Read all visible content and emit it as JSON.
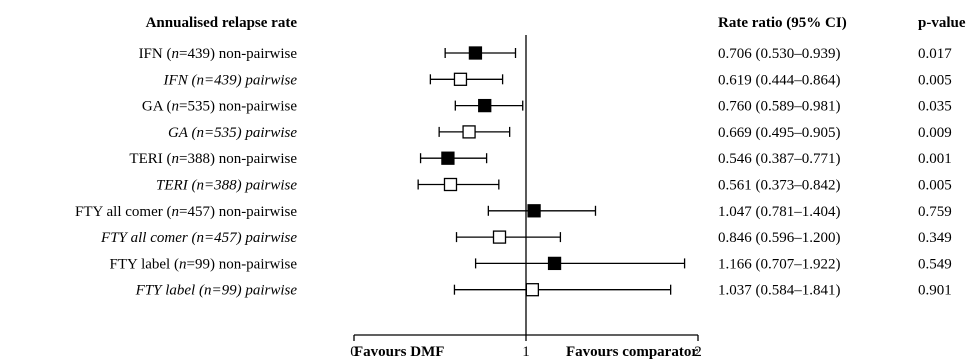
{
  "chart_data": {
    "type": "forest",
    "title": "Annualised relapse rate",
    "col_headers": {
      "ratio": "Rate ratio (95% CI)",
      "p": "p-value"
    },
    "xlim": [
      0,
      2
    ],
    "reference_line": 1,
    "xticks": [
      "0",
      "1",
      "2"
    ],
    "favours_left": "Favours DMF",
    "favours_right": "Favours comparator",
    "rows": [
      {
        "pre": "IFN (",
        "n": "n",
        "post": "=439) non-pairwise",
        "italic": false,
        "filled": true,
        "est": 0.706,
        "lo": 0.53,
        "hi": 0.939,
        "ci_text": "0.706 (0.530–0.939)",
        "p": "0.017"
      },
      {
        "pre": "IFN (",
        "n": "n",
        "post": "=439) pairwise",
        "italic": true,
        "filled": false,
        "est": 0.619,
        "lo": 0.444,
        "hi": 0.864,
        "ci_text": "0.619 (0.444–0.864)",
        "p": "0.005"
      },
      {
        "pre": "GA (",
        "n": "n",
        "post": "=535) non-pairwise",
        "italic": false,
        "filled": true,
        "est": 0.76,
        "lo": 0.589,
        "hi": 0.981,
        "ci_text": "0.760 (0.589–0.981)",
        "p": "0.035"
      },
      {
        "pre": "GA (",
        "n": "n",
        "post": "=535) pairwise",
        "italic": true,
        "filled": false,
        "est": 0.669,
        "lo": 0.495,
        "hi": 0.905,
        "ci_text": "0.669 (0.495–0.905)",
        "p": "0.009"
      },
      {
        "pre": "TERI (",
        "n": "n",
        "post": "=388) non-pairwise",
        "italic": false,
        "filled": true,
        "est": 0.546,
        "lo": 0.387,
        "hi": 0.771,
        "ci_text": "0.546 (0.387–0.771)",
        "p": "0.001"
      },
      {
        "pre": "TERI (",
        "n": "n",
        "post": "=388) pairwise",
        "italic": true,
        "filled": false,
        "est": 0.561,
        "lo": 0.373,
        "hi": 0.842,
        "ci_text": "0.561 (0.373–0.842)",
        "p": "0.005"
      },
      {
        "pre": "FTY all comer (",
        "n": "n",
        "post": "=457) non-pairwise",
        "italic": false,
        "filled": true,
        "est": 1.047,
        "lo": 0.781,
        "hi": 1.404,
        "ci_text": "1.047 (0.781–1.404)",
        "p": "0.759"
      },
      {
        "pre": "FTY all comer (",
        "n": "n",
        "post": "=457) pairwise",
        "italic": true,
        "filled": false,
        "est": 0.846,
        "lo": 0.596,
        "hi": 1.2,
        "ci_text": "0.846 (0.596–1.200)",
        "p": "0.349"
      },
      {
        "pre": "FTY label (",
        "n": "n",
        "post": "=99) non-pairwise",
        "italic": false,
        "filled": true,
        "est": 1.166,
        "lo": 0.707,
        "hi": 1.922,
        "ci_text": "1.166 (0.707–1.922)",
        "p": "0.549"
      },
      {
        "pre": "FTY label (",
        "n": "n",
        "post": "=99) pairwise",
        "italic": true,
        "filled": false,
        "est": 1.037,
        "lo": 0.584,
        "hi": 1.841,
        "ci_text": "1.037 (0.584–1.841)",
        "p": "0.901"
      }
    ]
  }
}
